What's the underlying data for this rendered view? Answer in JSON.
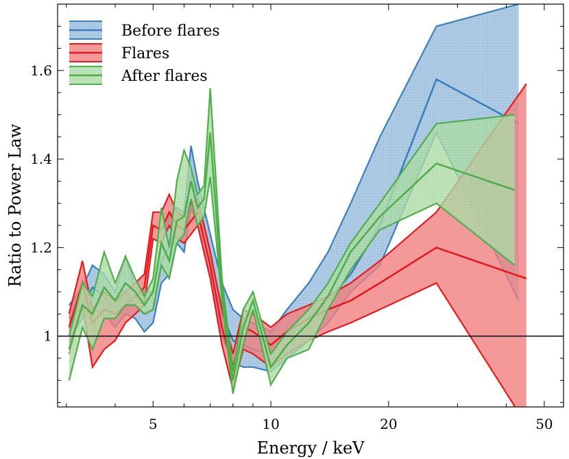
{
  "chart_data": {
    "type": "area",
    "xlabel": "Energy / keV",
    "ylabel": "Ratio to Power Law",
    "x_scale": "log",
    "xlim": [
      2.85,
      56
    ],
    "ylim": [
      0.84,
      1.75
    ],
    "x_ticks": [
      {
        "value": 5,
        "label": "5"
      },
      {
        "value": 10,
        "label": "10"
      },
      {
        "value": 20,
        "label": "20"
      },
      {
        "value": 50,
        "label": "50"
      }
    ],
    "y_ticks": [
      {
        "value": 1.0,
        "label": "1"
      },
      {
        "value": 1.2,
        "label": "1.2"
      },
      {
        "value": 1.4,
        "label": "1.4"
      },
      {
        "value": 1.6,
        "label": "1.6"
      }
    ],
    "reference_line": {
      "y": 1.0,
      "color": "#000000"
    },
    "legend": {
      "position": "top-left"
    },
    "series": [
      {
        "name": "Before flares",
        "color": "#3a7fbd",
        "fill": "#8fb7da",
        "x": [
          3.05,
          3.3,
          3.5,
          3.75,
          4.0,
          4.25,
          4.5,
          4.75,
          5.0,
          5.25,
          5.5,
          5.75,
          6.0,
          6.25,
          6.5,
          7.0,
          7.5,
          8.0,
          8.5,
          9.0,
          10.0,
          11.0,
          12.5,
          14.0,
          16.0,
          19.0,
          26.5,
          43.0
        ],
        "mid": [
          1.04,
          1.07,
          1.11,
          1.09,
          1.06,
          1.1,
          1.07,
          1.05,
          1.06,
          1.17,
          1.2,
          1.25,
          1.24,
          1.37,
          1.31,
          1.19,
          1.05,
          0.99,
          0.98,
          0.97,
          0.96,
          1.0,
          1.03,
          1.08,
          1.14,
          1.25,
          1.58,
          1.48
        ],
        "upper": [
          1.07,
          1.11,
          1.16,
          1.14,
          1.1,
          1.18,
          1.11,
          1.1,
          1.1,
          1.21,
          1.27,
          1.29,
          1.28,
          1.43,
          1.35,
          1.23,
          1.12,
          1.06,
          1.04,
          1.03,
          1.01,
          1.06,
          1.12,
          1.19,
          1.3,
          1.45,
          1.7,
          1.75
        ],
        "lower": [
          0.99,
          1.04,
          1.06,
          1.05,
          1.02,
          1.05,
          1.04,
          1.01,
          1.03,
          1.12,
          1.14,
          1.21,
          1.19,
          1.29,
          1.25,
          1.14,
          1.0,
          0.94,
          0.93,
          0.93,
          0.92,
          0.95,
          0.99,
          1.03,
          1.1,
          1.16,
          1.46,
          1.08
        ]
      },
      {
        "name": "Flares",
        "color": "#e41a1c",
        "fill": "#f08080",
        "x": [
          3.05,
          3.3,
          3.5,
          3.75,
          4.0,
          4.25,
          4.5,
          4.75,
          5.0,
          5.25,
          5.5,
          5.75,
          6.0,
          6.25,
          6.5,
          7.0,
          7.5,
          8.0,
          8.5,
          9.0,
          10.0,
          11.0,
          12.5,
          14.0,
          16.0,
          19.0,
          26.5,
          45.0
        ],
        "mid": [
          1.02,
          1.12,
          1.03,
          1.06,
          1.05,
          1.07,
          1.09,
          1.11,
          1.25,
          1.24,
          1.28,
          1.25,
          1.24,
          1.26,
          1.28,
          1.16,
          1.02,
          0.93,
          1.02,
          1.01,
          0.98,
          1.01,
          1.04,
          1.06,
          1.08,
          1.12,
          1.2,
          1.13
        ],
        "upper": [
          1.05,
          1.17,
          1.06,
          1.1,
          1.08,
          1.1,
          1.12,
          1.14,
          1.28,
          1.28,
          1.32,
          1.28,
          1.27,
          1.3,
          1.31,
          1.19,
          1.06,
          0.96,
          1.06,
          1.05,
          1.02,
          1.05,
          1.07,
          1.09,
          1.12,
          1.17,
          1.28,
          1.57
        ],
        "lower": [
          0.96,
          1.07,
          0.93,
          0.97,
          0.99,
          1.03,
          1.05,
          1.07,
          1.22,
          1.21,
          1.25,
          1.22,
          1.21,
          1.23,
          1.25,
          1.13,
          0.98,
          0.88,
          0.97,
          0.96,
          0.93,
          0.96,
          0.99,
          1.01,
          1.03,
          1.06,
          1.12,
          0.8
        ]
      },
      {
        "name": "After flares",
        "color": "#4daf4a",
        "fill": "#a6d89f",
        "x": [
          3.05,
          3.3,
          3.5,
          3.75,
          4.0,
          4.25,
          4.5,
          4.75,
          5.0,
          5.25,
          5.5,
          5.75,
          6.0,
          6.25,
          6.5,
          6.75,
          7.0,
          7.5,
          8.0,
          8.5,
          9.0,
          10.0,
          11.0,
          12.5,
          14.0,
          16.0,
          19.0,
          26.5,
          42.0
        ],
        "mid": [
          0.97,
          1.07,
          1.05,
          1.11,
          1.08,
          1.12,
          1.1,
          1.07,
          1.1,
          1.21,
          1.17,
          1.26,
          1.27,
          1.35,
          1.29,
          1.31,
          1.46,
          1.1,
          0.9,
          1.02,
          1.08,
          0.93,
          0.98,
          1.03,
          1.09,
          1.19,
          1.27,
          1.39,
          1.33
        ],
        "upper": [
          1.0,
          1.12,
          1.09,
          1.19,
          1.12,
          1.18,
          1.13,
          1.09,
          1.13,
          1.29,
          1.2,
          1.35,
          1.42,
          1.38,
          1.32,
          1.34,
          1.56,
          1.13,
          0.92,
          1.06,
          1.1,
          0.96,
          1.01,
          1.06,
          1.12,
          1.21,
          1.3,
          1.48,
          1.5
        ],
        "lower": [
          0.9,
          1.02,
          0.97,
          1.04,
          1.04,
          1.07,
          1.07,
          1.05,
          1.06,
          1.16,
          1.13,
          1.21,
          1.23,
          1.31,
          1.25,
          1.27,
          1.36,
          1.08,
          0.87,
          0.98,
          1.06,
          0.89,
          0.95,
          0.97,
          1.06,
          1.15,
          1.24,
          1.3,
          1.16
        ]
      }
    ]
  }
}
